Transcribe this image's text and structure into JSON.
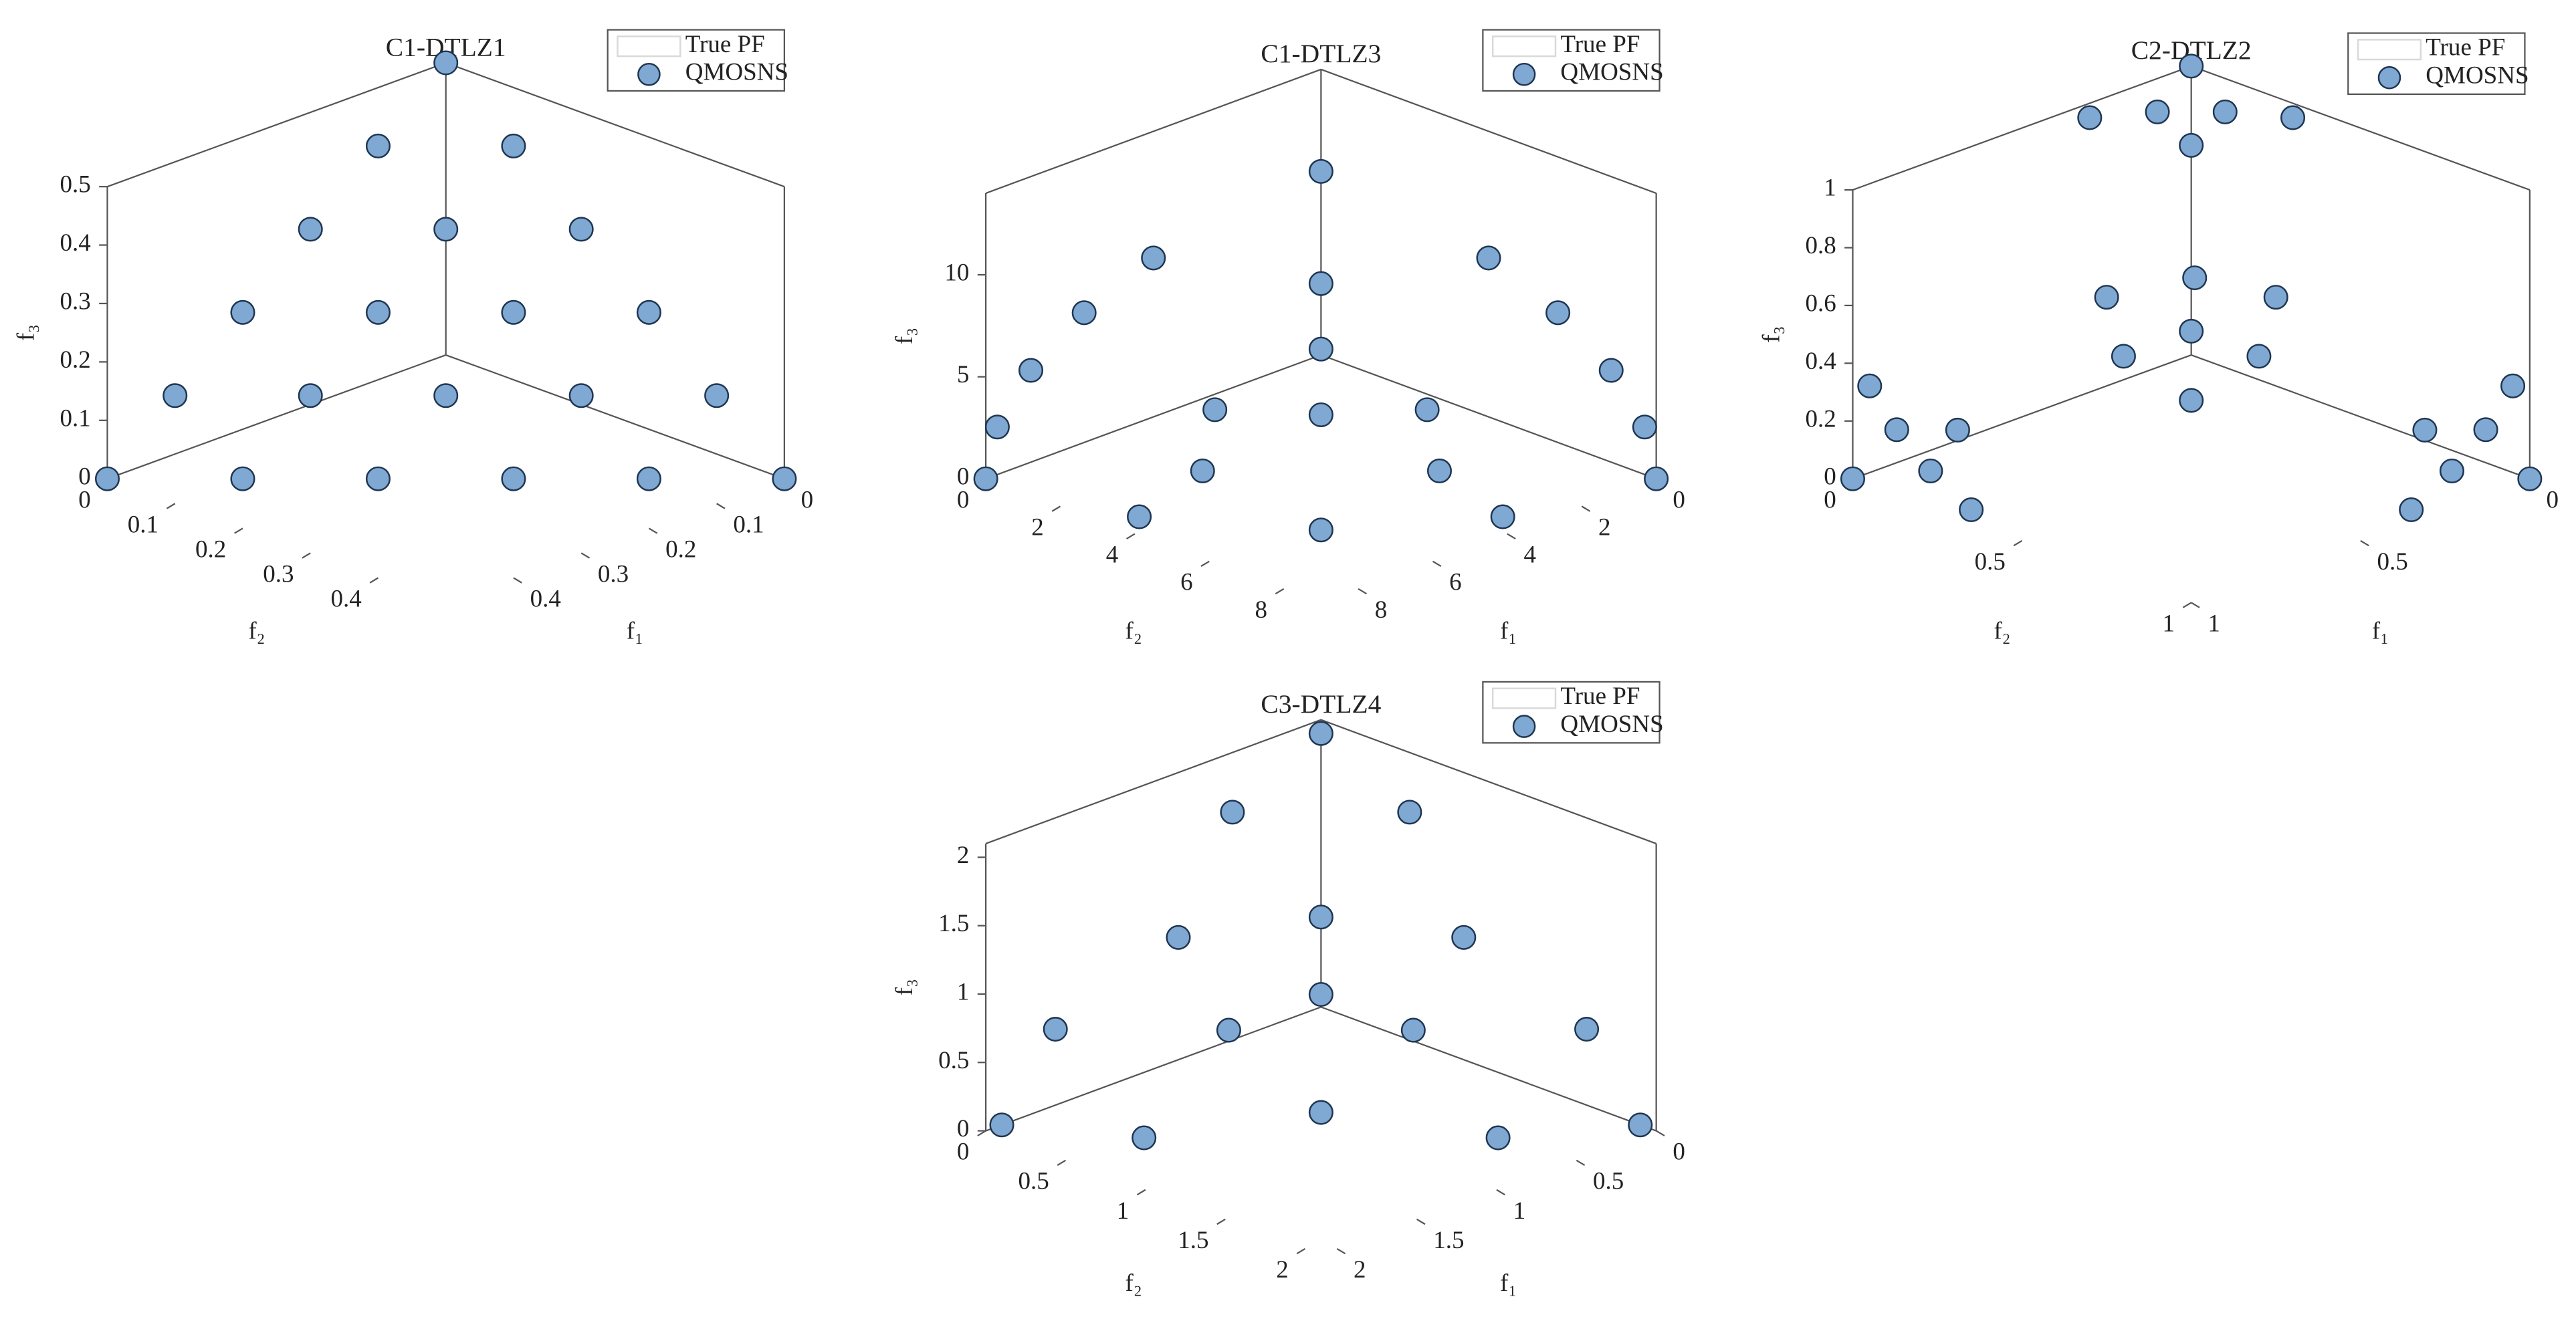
{
  "chart_data": [
    {
      "type": "scatter3d",
      "title": "C1-DTLZ1",
      "xlabel": "f₁",
      "ylabel": "f₂",
      "zlabel": "f₃",
      "xlim": [
        0,
        0.5
      ],
      "ylim": [
        0,
        0.5
      ],
      "zlim": [
        0,
        0.5
      ],
      "xticks": [
        0,
        0.1,
        0.2,
        0.3,
        0.4
      ],
      "yticks": [
        0,
        0.1,
        0.2,
        0.3,
        0.4
      ],
      "zticks": [
        0,
        0.1,
        0.2,
        0.3,
        0.4,
        0.5
      ],
      "series": [
        {
          "name": "True PF",
          "color": "#d9d9d9"
        },
        {
          "name": "QMOSNS",
          "color": "#7fa8d2",
          "x": [
            0,
            0,
            0,
            0,
            0,
            0,
            0.1,
            0.1,
            0.1,
            0.1,
            0.1,
            0.2,
            0.2,
            0.2,
            0.2,
            0.3,
            0.3,
            0.3,
            0.4,
            0.4,
            0.5
          ],
          "y": [
            0,
            0.1,
            0.2,
            0.3,
            0.4,
            0.5,
            0,
            0.1,
            0.2,
            0.3,
            0.4,
            0,
            0.1,
            0.2,
            0.3,
            0,
            0.1,
            0.2,
            0,
            0.1,
            0
          ],
          "z": [
            0.5,
            0.4,
            0.3,
            0.2,
            0.1,
            0,
            0.4,
            0.3,
            0.2,
            0.1,
            0,
            0.3,
            0.2,
            0.1,
            0,
            0.2,
            0.1,
            0,
            0.1,
            0,
            0
          ]
        }
      ]
    },
    {
      "type": "scatter3d",
      "title": "C1-DTLZ3",
      "xlabel": "f₁",
      "ylabel": "f₂",
      "zlabel": "f₃",
      "xlim": [
        0,
        9
      ],
      "ylim": [
        0,
        9
      ],
      "zlim": [
        0,
        14
      ],
      "xticks": [
        0,
        2,
        4,
        6,
        8
      ],
      "yticks": [
        0,
        2,
        4,
        6,
        8
      ],
      "zticks": [
        0,
        5,
        10
      ],
      "series": [
        {
          "name": "True PF",
          "color": "#d9d9d9"
        },
        {
          "name": "QMOSNS",
          "color": "#7fa8d2",
          "x": [
            0,
            4.5,
            3.18,
            0,
            6.36,
            4.5,
            0,
            7.79,
            6.75,
            5.51,
            3.9,
            0,
            8.69,
            7.53,
            4.35,
            0,
            9,
            8.32,
            6.36,
            3.44,
            0
          ],
          "y": [
            0,
            0,
            3.18,
            4.5,
            0,
            4.5,
            6.36,
            0,
            3.9,
            5.51,
            6.75,
            7.79,
            0,
            4.35,
            7.53,
            8.69,
            0,
            3.44,
            6.36,
            8.32,
            9
          ],
          "z": [
            9,
            7.79,
            7.79,
            7.79,
            6.36,
            6.36,
            6.36,
            4.5,
            4.5,
            4.5,
            4.5,
            4.5,
            2.33,
            2.33,
            2.33,
            2.33,
            0,
            0,
            0,
            0,
            0
          ]
        }
      ]
    },
    {
      "type": "scatter3d",
      "title": "C2-DTLZ2",
      "xlabel": "f₁",
      "ylabel": "f₂",
      "zlabel": "f₃",
      "xlim": [
        0,
        1
      ],
      "ylim": [
        0,
        1
      ],
      "zlim": [
        0,
        1
      ],
      "xticks": [
        0,
        0.5,
        1
      ],
      "yticks": [
        0,
        0.5,
        1
      ],
      "zticks": [
        0,
        0.2,
        0.4,
        0.6,
        0.8,
        1
      ],
      "series": [
        {
          "name": "True PF",
          "color": "#d9d9d9"
        },
        {
          "name": "QMOSNS",
          "color": "#7fa8d2",
          "x": [
            0,
            0.2,
            0.1,
            0.25,
            0.3,
            0,
            0.577,
            0.7,
            0.5,
            0.5,
            0.4,
            0.65,
            0.65,
            1,
            0.97,
            0.97,
            0.94,
            0.95,
            0.95,
            0,
            0.2,
            0.1,
            0.25,
            0.3,
            0
          ],
          "y": [
            0,
            0.1,
            0.2,
            0.25,
            0,
            0.3,
            0.577,
            0.5,
            0.7,
            0.51,
            0.65,
            0.4,
            0.65,
            0,
            0.2,
            0.1,
            0.25,
            0.3,
            0,
            1,
            0.97,
            0.97,
            0.94,
            0.95,
            0.95
          ],
          "z": [
            1,
            0.97,
            0.97,
            0.94,
            0.95,
            0.95,
            0.577,
            0.51,
            0.51,
            0.7,
            0.65,
            0.65,
            0.4,
            0,
            0.1,
            0.2,
            0.25,
            0,
            0.3,
            0,
            0.1,
            0.2,
            0.25,
            0,
            0.3
          ]
        }
      ]
    },
    {
      "type": "scatter3d",
      "title": "C3-DTLZ4",
      "xlabel": "f₁",
      "ylabel": "f₂",
      "zlabel": "f₃",
      "xlim": [
        0,
        2.1
      ],
      "ylim": [
        0,
        2.1
      ],
      "zlim": [
        0,
        2.1
      ],
      "xticks": [
        0,
        0.5,
        1,
        1.5,
        2
      ],
      "yticks": [
        0,
        0.5,
        1,
        1.5,
        2
      ],
      "zticks": [
        0,
        0.5,
        1,
        1.5,
        2
      ],
      "series": [
        {
          "name": "True PF",
          "color": "#d9d9d9"
        },
        {
          "name": "QMOSNS",
          "color": "#7fa8d2",
          "x": [
            0,
            0.555,
            0,
            0.577,
            0.894,
            0,
            0.667,
            1.664,
            1.155,
            0.577,
            0,
            2,
            1.664,
            0.894,
            0.555,
            0
          ],
          "y": [
            0,
            0,
            0.555,
            0.577,
            0,
            0.894,
            0.667,
            0,
            0.577,
            1.155,
            1.664,
            0,
            0.555,
            0.894,
            1.664,
            2
          ],
          "z": [
            2,
            1.664,
            1.664,
            1.155,
            0.894,
            0.894,
            0.667,
            0.555,
            0.577,
            0.577,
            0.555,
            0,
            0,
            0,
            0,
            0
          ]
        }
      ]
    }
  ]
}
